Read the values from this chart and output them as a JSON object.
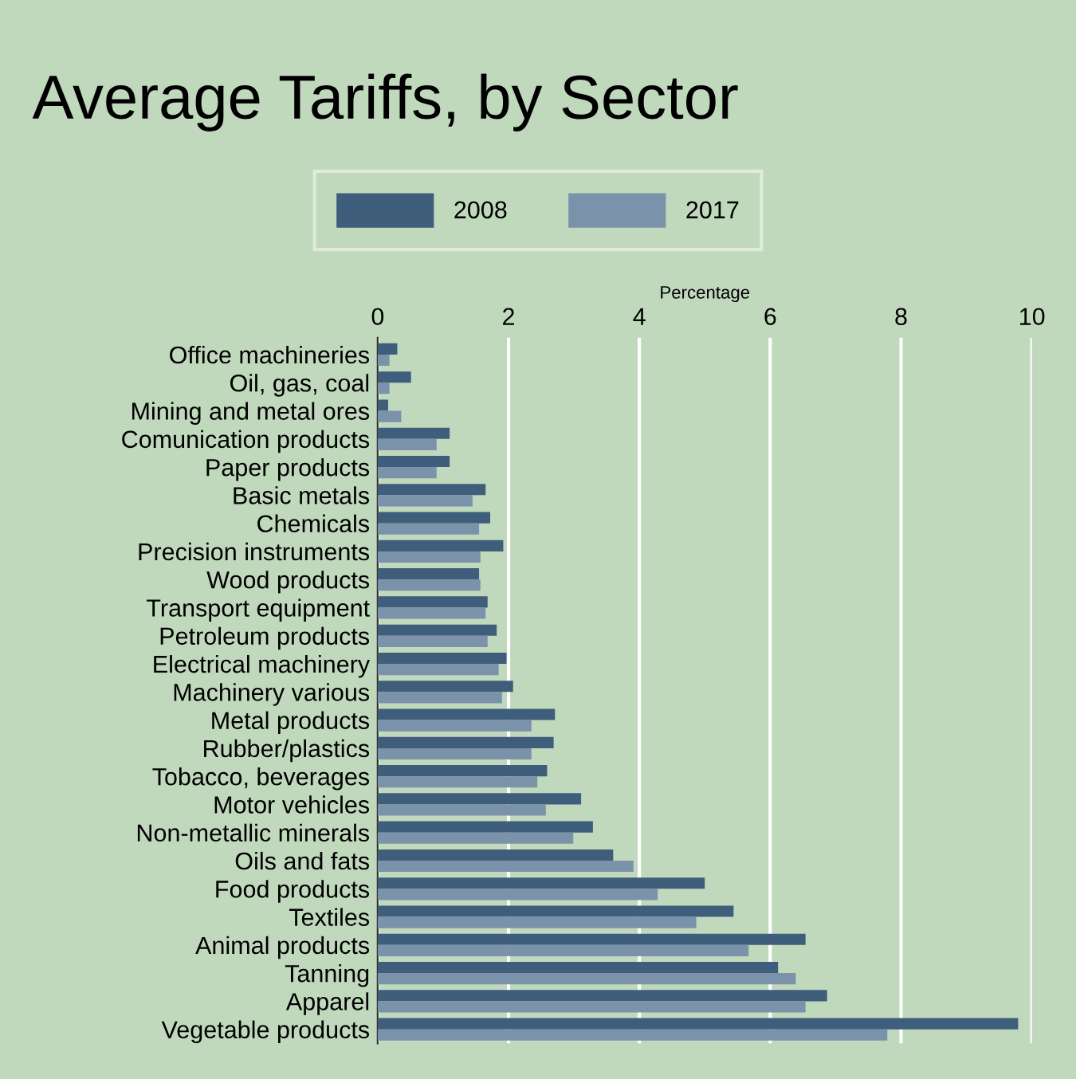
{
  "chart_data": {
    "type": "bar",
    "orientation": "horizontal",
    "title": "Average Tariffs, by Sector",
    "xlabel": "Percentage",
    "categories": [
      "Office machineries",
      "Oil, gas, coal",
      "Mining and metal ores",
      "Comunication products",
      "Paper products",
      "Basic metals",
      "Chemicals",
      "Precision instruments",
      "Wood products",
      "Transport equipment",
      "Petroleum products",
      "Electrical machinery",
      "Machinery various",
      "Metal products",
      "Rubber/plastics",
      "Tobacco, beverages",
      "Motor vehicles",
      "Non-metallic minerals",
      "Oils and fats",
      "Food products",
      "Textiles",
      "Animal products",
      "Tanning",
      "Apparel",
      "Vegetable products"
    ],
    "series": [
      {
        "name": "2008",
        "color": "#3f5e7c",
        "values": [
          0.3,
          0.51,
          0.16,
          1.1,
          1.1,
          1.65,
          1.72,
          1.92,
          1.55,
          1.68,
          1.82,
          1.97,
          2.07,
          2.71,
          2.69,
          2.59,
          3.11,
          3.29,
          3.6,
          5.0,
          5.44,
          6.54,
          6.12,
          6.87,
          9.79
        ]
      },
      {
        "name": "2017",
        "color": "#7a92aa",
        "values": [
          0.18,
          0.18,
          0.36,
          0.9,
          0.9,
          1.45,
          1.55,
          1.57,
          1.57,
          1.65,
          1.68,
          1.85,
          1.9,
          2.35,
          2.35,
          2.44,
          2.57,
          2.99,
          3.91,
          4.28,
          4.87,
          5.67,
          6.39,
          6.54,
          7.79
        ]
      }
    ],
    "xlim": [
      0,
      10
    ],
    "xticks": [
      0,
      2,
      4,
      6,
      8,
      10
    ],
    "grid": "x",
    "legend": "top"
  }
}
